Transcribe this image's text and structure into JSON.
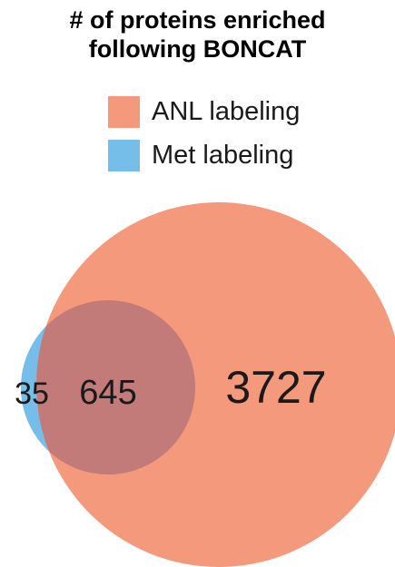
{
  "title": {
    "line1": "# of proteins enriched",
    "line2": "following BONCAT"
  },
  "legend": [
    {
      "label": "ANL labeling",
      "color": "#f4997c"
    },
    {
      "label": "Met labeling",
      "color": "#74bee9"
    }
  ],
  "venn": {
    "met_only": "35",
    "overlap": "645",
    "anl_only": "3727",
    "colors": {
      "anl": "#f4997c",
      "met": "#74bee9",
      "overlap": "#c27b79"
    }
  }
}
